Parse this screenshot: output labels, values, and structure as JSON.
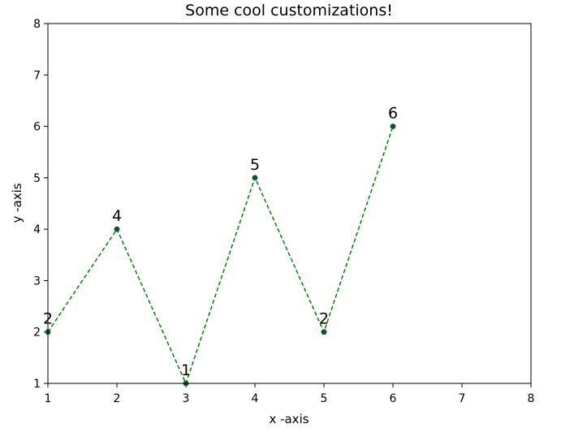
{
  "chart_data": {
    "type": "line",
    "title": "Some cool customizations!",
    "xlabel": "x -axis",
    "ylabel": "y -axis",
    "x": [
      1,
      2,
      3,
      4,
      5,
      6
    ],
    "series": [
      {
        "values": [
          2,
          4,
          1,
          5,
          2,
          6
        ],
        "color": "#008000",
        "line_style": "dashed",
        "marker": "circle",
        "marker_color": "#1f3b73"
      }
    ],
    "data_labels": [
      "2",
      "4",
      "1",
      "5",
      "2",
      "6"
    ],
    "xlim": [
      1,
      8
    ],
    "ylim": [
      1,
      8
    ],
    "xticks": [
      "1",
      "2",
      "3",
      "4",
      "5",
      "6",
      "7",
      "8"
    ],
    "yticks": [
      "1",
      "2",
      "3",
      "4",
      "5",
      "6",
      "7",
      "8"
    ],
    "grid": false,
    "legend": false
  }
}
